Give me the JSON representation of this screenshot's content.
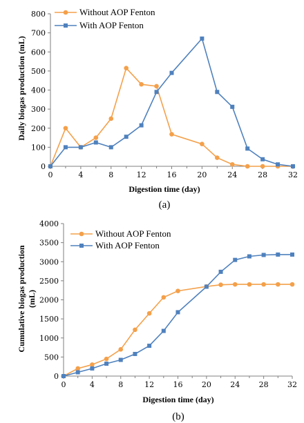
{
  "colors": {
    "without": "#F4A04A",
    "with": "#4F81BD"
  },
  "chart_data": [
    {
      "type": "line",
      "caption": "(a)",
      "xlabel": "Digestion time (day)",
      "ylabel": "Daily biogas production (mL)",
      "xlim": [
        0,
        32
      ],
      "ylim": [
        0,
        800
      ],
      "xticks": [
        0,
        4,
        8,
        12,
        16,
        20,
        24,
        28,
        32
      ],
      "yticks": [
        0,
        100,
        200,
        300,
        400,
        500,
        600,
        700,
        800
      ],
      "legend_position": "top-left",
      "series": [
        {
          "name": "Without AOP Fenton",
          "marker": "circle",
          "x": [
            0,
            2,
            4,
            6,
            8,
            10,
            12,
            14,
            16,
            20,
            22,
            24,
            26,
            28,
            30,
            32
          ],
          "y": [
            0,
            200,
            100,
            150,
            250,
            515,
            430,
            420,
            168,
            117,
            45,
            10,
            0,
            0,
            0,
            0
          ]
        },
        {
          "name": "With AOP Fenton",
          "marker": "square",
          "x": [
            0,
            2,
            4,
            6,
            8,
            10,
            12,
            14,
            16,
            20,
            22,
            24,
            26,
            28,
            30,
            32
          ],
          "y": [
            0,
            100,
            100,
            125,
            100,
            155,
            215,
            390,
            490,
            670,
            390,
            312,
            93,
            37,
            10,
            0
          ]
        }
      ]
    },
    {
      "type": "line",
      "caption": "(b)",
      "xlabel": "Digestion time (day)",
      "ylabel": "Cumulative biogas production (mL)",
      "xlim": [
        0,
        32
      ],
      "ylim": [
        0,
        4000
      ],
      "xticks": [
        0,
        4,
        8,
        12,
        16,
        20,
        24,
        28,
        32
      ],
      "yticks": [
        0,
        500,
        1000,
        1500,
        2000,
        2500,
        3000,
        3500,
        4000
      ],
      "legend_position": "top-left",
      "series": [
        {
          "name": "Without AOP Fenton",
          "marker": "circle",
          "x": [
            0,
            2,
            4,
            6,
            8,
            10,
            12,
            14,
            16,
            20,
            22,
            24,
            26,
            28,
            30,
            32
          ],
          "y": [
            0,
            200,
            300,
            450,
            700,
            1215,
            1645,
            2065,
            2233,
            2350,
            2395,
            2405,
            2405,
            2405,
            2405,
            2405
          ]
        },
        {
          "name": "With AOP Fenton",
          "marker": "square",
          "x": [
            0,
            2,
            4,
            6,
            8,
            10,
            12,
            14,
            16,
            20,
            22,
            24,
            26,
            28,
            30,
            32
          ],
          "y": [
            0,
            100,
            200,
            325,
            425,
            580,
            795,
            1185,
            1675,
            2345,
            2735,
            3047,
            3140,
            3177,
            3187,
            3187
          ]
        }
      ]
    }
  ]
}
